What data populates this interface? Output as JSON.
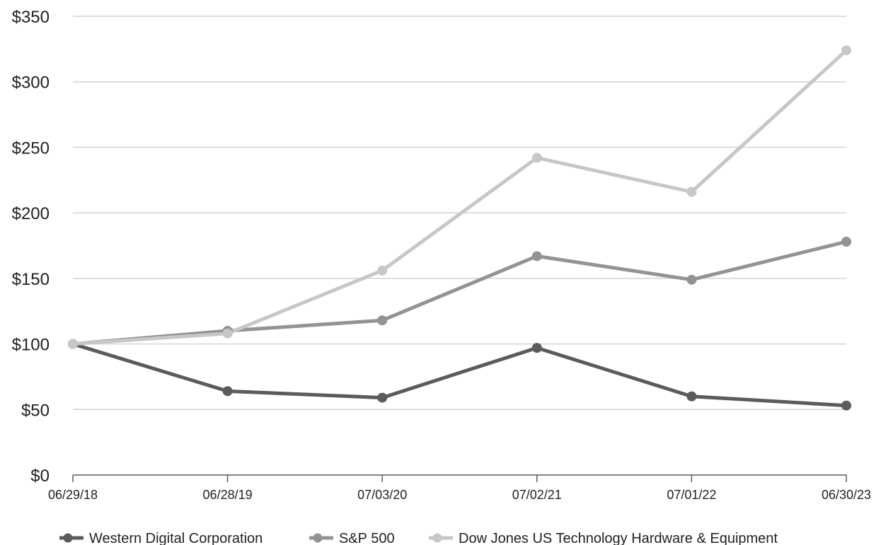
{
  "chart_data": {
    "type": "line",
    "title": "",
    "xlabel": "",
    "ylabel": "",
    "categories": [
      "06/29/18",
      "06/28/19",
      "07/03/20",
      "07/02/21",
      "07/01/22",
      "06/30/23"
    ],
    "y_ticks": [
      "$0",
      "$50",
      "$100",
      "$150",
      "$200",
      "$250",
      "$300",
      "$350"
    ],
    "y_tick_values": [
      0,
      50,
      100,
      150,
      200,
      250,
      300,
      350
    ],
    "ylim": [
      0,
      350
    ],
    "grid": "horizontal",
    "legend_position": "bottom",
    "series": [
      {
        "name": "Western Digital Corporation",
        "color": "#5b5b5b",
        "values": [
          100,
          64,
          59,
          97,
          60,
          53
        ]
      },
      {
        "name": "S&P 500",
        "color": "#939393",
        "values": [
          100,
          110,
          118,
          167,
          149,
          178
        ]
      },
      {
        "name": "Dow Jones US Technology Hardware & Equipment",
        "color": "#c7c7c7",
        "values": [
          100,
          108,
          156,
          242,
          216,
          324
        ]
      }
    ]
  }
}
